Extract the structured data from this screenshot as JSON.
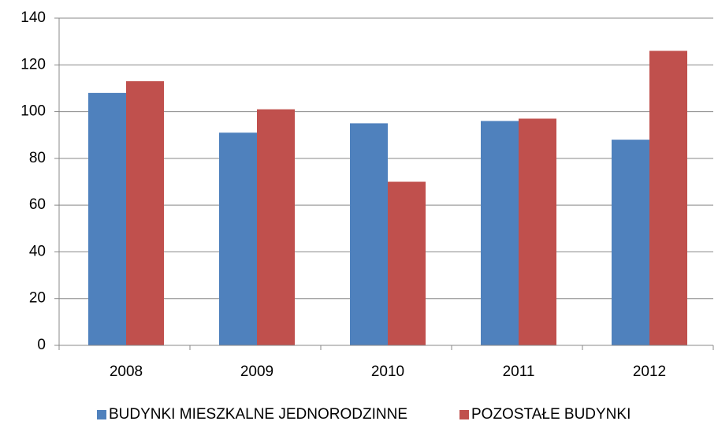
{
  "chart_data": {
    "type": "bar",
    "categories": [
      "2008",
      "2009",
      "2010",
      "2011",
      "2012"
    ],
    "series": [
      {
        "name": "BUDYNKI MIESZKALNE JEDNORODZINNE",
        "color": "#4f81bd",
        "values": [
          108,
          91,
          95,
          96,
          88
        ]
      },
      {
        "name": "POZOSTAŁE BUDYNKI",
        "color": "#c0504d",
        "values": [
          113,
          101,
          70,
          97,
          126
        ]
      }
    ],
    "ylim": [
      0,
      140
    ],
    "yticks": [
      0,
      20,
      40,
      60,
      80,
      100,
      120,
      140
    ],
    "grid": true,
    "legend": "bottom"
  }
}
